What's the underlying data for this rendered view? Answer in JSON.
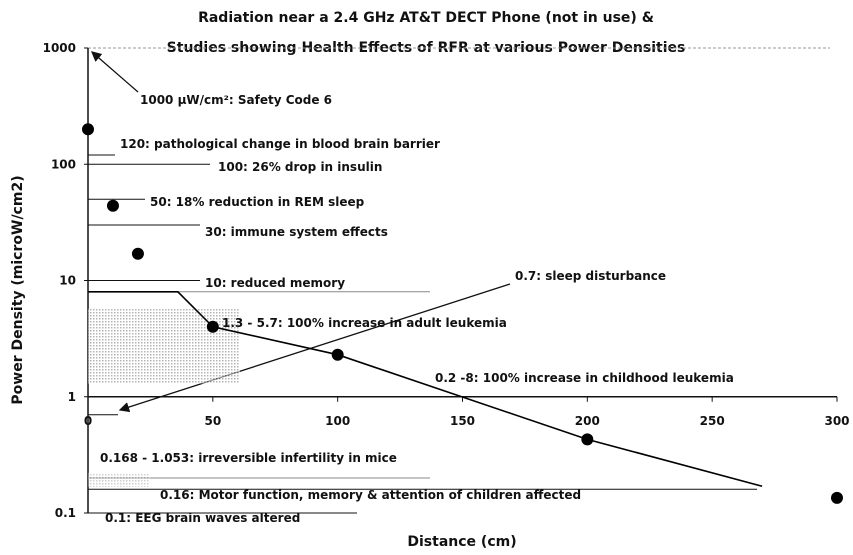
{
  "chart_data": {
    "type": "scatter",
    "title": [
      "Radiation near a 2.4 GHz AT&T DECT Phone (not in use) &",
      "Studies showing Health Effects of RFR at various Power Densities"
    ],
    "x_label": "Distance (cm)",
    "y_label": "Power Density (microW/cm2)",
    "log_scale": true,
    "xlim": [
      0,
      300
    ],
    "ylim": [
      0.1,
      1000
    ],
    "xticks": [
      0,
      50,
      100,
      150,
      200,
      250,
      300
    ],
    "yticks": [
      0.1,
      1,
      10,
      100,
      1000
    ],
    "series": [
      {
        "color": "#000000",
        "x": [
          0,
          10,
          20,
          50,
          100,
          200,
          300
        ],
        "values": [
          200,
          44,
          17,
          4,
          2.3,
          0.43,
          0.135
        ]
      }
    ],
    "line": {
      "color": "#000000",
      "x": [
        0,
        36,
        50,
        100,
        200,
        270
      ],
      "values": [
        8,
        8,
        4,
        2.3,
        0.43,
        0.17
      ]
    },
    "annotations": [
      {
        "value": 1000,
        "label": "1000 µW/cm²:  Safety Code 6"
      },
      {
        "value": 120,
        "label": "120:  pathological change in blood brain barrier"
      },
      {
        "value": 100,
        "label": "100:  26% drop in insulin"
      },
      {
        "value": 50,
        "label": "50:  18% reduction in REM sleep"
      },
      {
        "value": 30,
        "label": "30: immune system effects"
      },
      {
        "value": 10,
        "label": "10:  reduced memory"
      },
      {
        "value": 0.7,
        "label": "0.7:  sleep disturbance"
      },
      {
        "low": 1.3,
        "high": 5.7,
        "label": "1.3 - 5.7:  100% increase in adult leukemia"
      },
      {
        "low": 0.2,
        "high": 8,
        "label": "0.2 -8:  100% increase in childhood leukemia"
      },
      {
        "low": 0.168,
        "high": 1.053,
        "label": "0.168 - 1.053:  irreversible infertility in mice"
      },
      {
        "value": 0.16,
        "label": "0.16:  Motor function, memory & attention of children affected"
      },
      {
        "value": 0.1,
        "label": "0.1:  EEG brain waves altered"
      }
    ]
  }
}
